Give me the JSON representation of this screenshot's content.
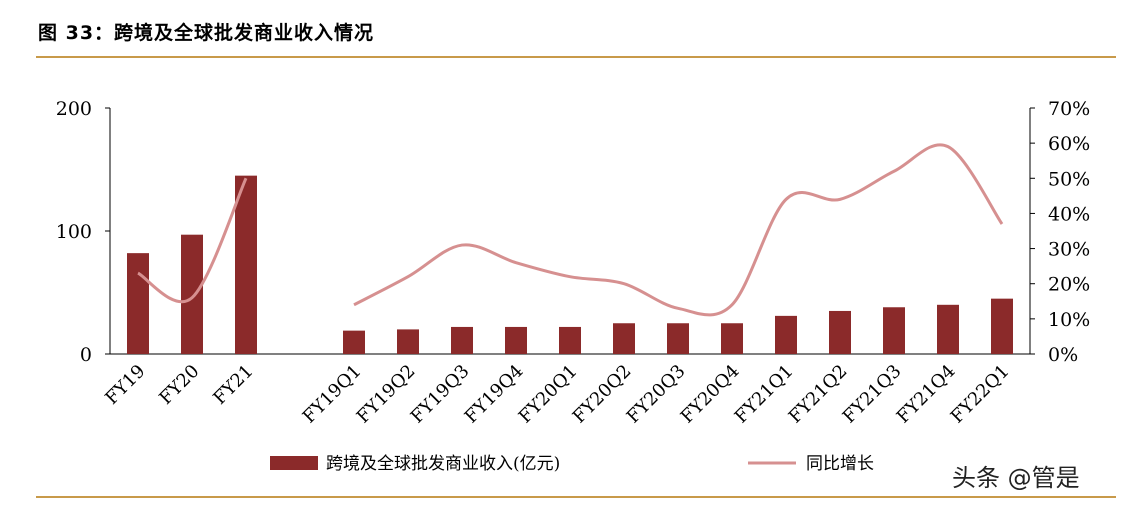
{
  "title": "图 33：跨境及全球批发商业收入情况",
  "watermark": "头条 @管是",
  "colors": {
    "bar": "#8b2a2a",
    "line": "#d69090",
    "rule": "#c89a4a",
    "text": "#000000"
  },
  "chart_data": {
    "type": "bar",
    "categories": [
      "FY19",
      "FY20",
      "FY21",
      "FY19Q1",
      "FY19Q2",
      "FY19Q3",
      "FY19Q4",
      "FY20Q1",
      "FY20Q2",
      "FY20Q3",
      "FY20Q4",
      "FY21Q1",
      "FY21Q2",
      "FY21Q3",
      "FY21Q4",
      "FY22Q1"
    ],
    "groups": [
      [
        "FY19",
        "FY20",
        "FY21"
      ],
      [
        "FY19Q1",
        "FY19Q2",
        "FY19Q3",
        "FY19Q4",
        "FY20Q1",
        "FY20Q2",
        "FY20Q3",
        "FY20Q4",
        "FY21Q1",
        "FY21Q2",
        "FY21Q3",
        "FY21Q4",
        "FY22Q1"
      ]
    ],
    "series": [
      {
        "name": "跨境及全球批发商业收入(亿元)",
        "type": "bar",
        "axis": "left",
        "values": [
          82,
          97,
          145,
          19,
          20,
          22,
          22,
          22,
          25,
          25,
          25,
          31,
          35,
          38,
          40,
          45
        ]
      },
      {
        "name": "同比增长",
        "type": "line",
        "axis": "right",
        "values": [
          0.23,
          0.16,
          0.5,
          0.14,
          0.22,
          0.31,
          0.26,
          0.22,
          0.2,
          0.13,
          0.14,
          0.44,
          0.44,
          0.52,
          0.59,
          0.37
        ]
      }
    ],
    "y_left": {
      "lim": [
        0,
        200
      ],
      "ticks": [
        "0",
        "100",
        "200"
      ],
      "tick_values": [
        0,
        100,
        200
      ]
    },
    "y_right": {
      "lim": [
        0,
        0.7
      ],
      "ticks": [
        "0%",
        "10%",
        "20%",
        "30%",
        "40%",
        "50%",
        "60%",
        "70%"
      ],
      "tick_values": [
        0,
        0.1,
        0.2,
        0.3,
        0.4,
        0.5,
        0.6,
        0.7
      ]
    },
    "grid": false,
    "legend": "bottom-center"
  }
}
